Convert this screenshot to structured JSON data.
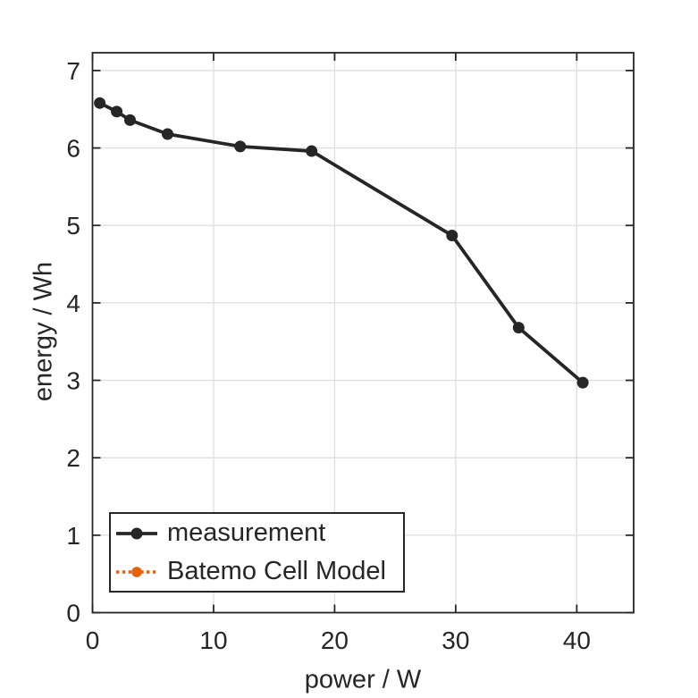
{
  "colors": {
    "axis": "#262626",
    "grid": "#dedede",
    "text": "#262626",
    "background": "#ffffff"
  },
  "chart_data": {
    "type": "line",
    "title": "",
    "xlabel": "power / W",
    "ylabel": "energy / Wh",
    "xlim": [
      0,
      44.7
    ],
    "ylim": [
      0,
      7.23
    ],
    "xticks": [
      0,
      10,
      20,
      30,
      40
    ],
    "yticks": [
      0,
      1,
      2,
      3,
      4,
      5,
      6,
      7
    ],
    "grid": true,
    "legend_position": "bottom-left",
    "series": [
      {
        "name": "measurement",
        "color": "#262626",
        "line_style": "solid",
        "marker": "circle",
        "x": [
          0.6,
          2.0,
          3.1,
          6.2,
          12.2,
          18.1,
          29.7,
          35.2,
          40.5
        ],
        "y": [
          6.58,
          6.47,
          6.36,
          6.18,
          6.02,
          5.96,
          4.87,
          3.68,
          2.97
        ]
      },
      {
        "name": "Batemo Cell Model",
        "color": "#e4610e",
        "line_style": "dotted",
        "marker": "circle",
        "x": [],
        "y": []
      }
    ]
  },
  "legend": {
    "items": [
      {
        "label": "measurement"
      },
      {
        "label": "Batemo Cell Model"
      }
    ]
  }
}
